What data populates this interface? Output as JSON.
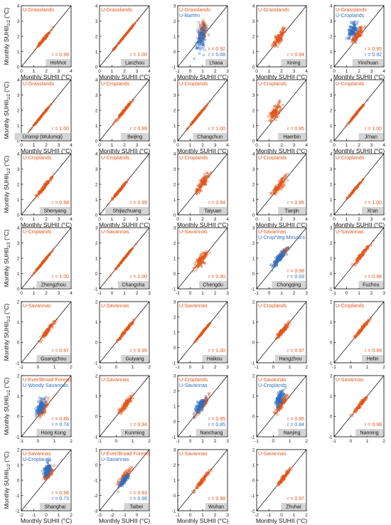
{
  "labels": {
    "ylabel_main": "Monthly SUHII",
    "ylabel_sub": "1/2",
    "ylabel_unit": "(°C)",
    "xlabel": "Monthly SUHII (°C)"
  },
  "colors": {
    "orange": "#E2561B",
    "blue": "#2F6EBF",
    "gray_box": "#D4D4D4",
    "axis": "#000000"
  },
  "chart_data": [
    {
      "city": "Hohhot",
      "type": "scatter",
      "ticks": [
        "0",
        "1",
        "2",
        "3",
        "4"
      ],
      "lo": 0,
      "hi": 4,
      "series": [
        {
          "name": "U-Grasslands",
          "color": "orange",
          "r": "r = 0.99",
          "center": [
            1.8,
            1.8
          ],
          "spread": 0.9,
          "scatter": 0.08
        }
      ]
    },
    {
      "city": "Lanzhou",
      "type": "scatter",
      "ticks": [
        "0",
        "1",
        "2",
        "3",
        "4"
      ],
      "lo": 0,
      "hi": 4,
      "series": [
        {
          "name": "U-Grasslands",
          "color": "orange",
          "r": "r = 1.00",
          "center": [
            2.0,
            2.0
          ],
          "spread": 1.4,
          "scatter": 0.03
        }
      ]
    },
    {
      "city": "Lhasa",
      "type": "scatter",
      "ticks": [
        "-1",
        "0",
        "1",
        "2",
        "3"
      ],
      "lo": -1,
      "hi": 3,
      "series": [
        {
          "name": "U-Grasslands",
          "color": "orange",
          "r": "r = 0.92",
          "center": [
            1.0,
            1.4
          ],
          "spread": 0.4,
          "scatter": 0.45
        },
        {
          "name": "U-Barren",
          "color": "blue",
          "r": "r = 0.68",
          "center": [
            0.9,
            0.9
          ],
          "spread": 0.5,
          "scatter": 0.6
        }
      ]
    },
    {
      "city": "Xining",
      "type": "scatter",
      "ticks": [
        "0",
        "1",
        "2",
        "3",
        "4"
      ],
      "lo": 0,
      "hi": 4,
      "series": [
        {
          "name": "U-Grasslands",
          "color": "orange",
          "r": "r = 0.94",
          "center": [
            1.8,
            1.9
          ],
          "spread": 0.8,
          "scatter": 0.3
        }
      ]
    },
    {
      "city": "Yinchuan",
      "type": "scatter",
      "ticks": [
        "0",
        "1",
        "2",
        "3",
        "4"
      ],
      "lo": 0,
      "hi": 4,
      "series": [
        {
          "name": "U-Grasslands",
          "color": "orange",
          "r": "r = 0.95",
          "center": [
            1.9,
            2.1
          ],
          "spread": 0.7,
          "scatter": 0.3
        },
        {
          "name": "U-Croplands",
          "color": "blue",
          "r": "r = 0.92",
          "center": [
            1.5,
            2.4
          ],
          "spread": 0.5,
          "scatter": 0.35
        }
      ]
    },
    {
      "city": "Ürümqi (Wulumqi)",
      "type": "scatter",
      "ticks": [
        "0",
        "1",
        "2",
        "3",
        "4"
      ],
      "lo": 0,
      "hi": 4,
      "series": [
        {
          "name": "U-Grasslands",
          "color": "orange",
          "r": "r = 1.00",
          "center": [
            1.6,
            1.6
          ],
          "spread": 1.1,
          "scatter": 0.04
        }
      ]
    },
    {
      "city": "Beijing",
      "type": "scatter",
      "ticks": [
        "0",
        "1",
        "2",
        "3",
        "4"
      ],
      "lo": 0,
      "hi": 4,
      "series": [
        {
          "name": "U-Croplands",
          "color": "orange",
          "r": "r = 0.99",
          "center": [
            2.0,
            2.0
          ],
          "spread": 1.0,
          "scatter": 0.08
        }
      ]
    },
    {
      "city": "Changchun",
      "type": "scatter",
      "ticks": [
        "0",
        "1",
        "2",
        "3",
        "4"
      ],
      "lo": 0,
      "hi": 4,
      "series": [
        {
          "name": "U-Croplands",
          "color": "orange",
          "r": "r = 1.00",
          "center": [
            1.6,
            1.6
          ],
          "spread": 1.1,
          "scatter": 0.04
        }
      ]
    },
    {
      "city": "Haerbin",
      "type": "scatter",
      "ticks": [
        "0",
        "1",
        "2",
        "3",
        "4"
      ],
      "lo": 0,
      "hi": 4,
      "series": [
        {
          "name": "U-Croplands",
          "color": "orange",
          "r": "r = 0.95",
          "center": [
            1.5,
            1.9
          ],
          "spread": 0.7,
          "scatter": 0.35
        }
      ]
    },
    {
      "city": "Ji'nan",
      "type": "scatter",
      "ticks": [
        "0",
        "1",
        "2",
        "3",
        "4"
      ],
      "lo": 0,
      "hi": 4,
      "series": [
        {
          "name": "U-Croplands",
          "color": "orange",
          "r": "r = 1.00",
          "center": [
            1.8,
            1.8
          ],
          "spread": 1.0,
          "scatter": 0.04
        }
      ]
    },
    {
      "city": "Shenyang",
      "type": "scatter",
      "ticks": [
        "0",
        "1",
        "2",
        "3",
        "4"
      ],
      "lo": 0,
      "hi": 4,
      "series": [
        {
          "name": "U-Croplands",
          "color": "orange",
          "r": "r = 0.98",
          "center": [
            1.8,
            1.8
          ],
          "spread": 1.0,
          "scatter": 0.12
        }
      ]
    },
    {
      "city": "Shijiazhuang",
      "type": "scatter",
      "ticks": [
        "0",
        "1",
        "2",
        "3",
        "4"
      ],
      "lo": 0,
      "hi": 4,
      "series": [
        {
          "name": "U-Croplands",
          "color": "orange",
          "r": "r = 0.99",
          "center": [
            1.6,
            1.6
          ],
          "spread": 1.0,
          "scatter": 0.07
        }
      ]
    },
    {
      "city": "Taiyuan",
      "type": "scatter",
      "ticks": [
        "0",
        "1",
        "2",
        "3",
        "4"
      ],
      "lo": 0,
      "hi": 4,
      "series": [
        {
          "name": "U-Croplands",
          "color": "orange",
          "r": "r = 0.94",
          "center": [
            2.0,
            2.1
          ],
          "spread": 0.8,
          "scatter": 0.28
        }
      ]
    },
    {
      "city": "Tianjin",
      "type": "scatter",
      "ticks": [
        "0",
        "1",
        "2",
        "3",
        "4"
      ],
      "lo": 0,
      "hi": 4,
      "series": [
        {
          "name": "U-Croplands",
          "color": "orange",
          "r": "r = 0.95",
          "center": [
            1.8,
            1.9
          ],
          "spread": 0.9,
          "scatter": 0.3
        }
      ]
    },
    {
      "city": "Xi'an",
      "type": "scatter",
      "ticks": [
        "0",
        "1",
        "2",
        "3",
        "4"
      ],
      "lo": 0,
      "hi": 4,
      "series": [
        {
          "name": "U-Croplands",
          "color": "orange",
          "r": "r = 1.00",
          "center": [
            1.7,
            1.7
          ],
          "spread": 1.0,
          "scatter": 0.04
        }
      ]
    },
    {
      "city": "Zhengzhou",
      "type": "scatter",
      "ticks": [
        "0",
        "1",
        "2",
        "3",
        "4"
      ],
      "lo": 0,
      "hi": 4,
      "series": [
        {
          "name": "U-Croplands",
          "color": "orange",
          "r": "r = 1.00",
          "center": [
            1.8,
            1.8
          ],
          "spread": 1.1,
          "scatter": 0.04
        }
      ]
    },
    {
      "city": "Changsha",
      "type": "scatter",
      "ticks": [
        "-1",
        "0",
        "1",
        "2",
        "3"
      ],
      "lo": -1,
      "hi": 3,
      "series": [
        {
          "name": "U-Savannas",
          "color": "orange",
          "r": "r = 1.00",
          "center": [
            1.0,
            1.0
          ],
          "spread": 1.1,
          "scatter": 0.04
        }
      ]
    },
    {
      "city": "Chengdu",
      "type": "scatter",
      "ticks": [
        "-1",
        "0",
        "1",
        "2",
        "3"
      ],
      "lo": -1,
      "hi": 3,
      "series": [
        {
          "name": "U-Savannas",
          "color": "orange",
          "r": "r = 0.90",
          "center": [
            0.9,
            0.9
          ],
          "spread": 0.7,
          "scatter": 0.3
        }
      ]
    },
    {
      "city": "Chongqing",
      "type": "scatter",
      "ticks": [
        "-1",
        "0",
        "1",
        "2",
        "3"
      ],
      "lo": -1,
      "hi": 3,
      "series": [
        {
          "name": "U-Savannas",
          "color": "orange",
          "r": "r = 0.98",
          "center": [
            1.0,
            1.2
          ],
          "spread": 0.8,
          "scatter": 0.12
        },
        {
          "name": "U-Crop/Veg Mosaics",
          "color": "blue",
          "r": "r = 0.93",
          "center": [
            0.8,
            1.0
          ],
          "spread": 0.9,
          "scatter": 0.25
        }
      ]
    },
    {
      "city": "Fuzhou",
      "type": "scatter",
      "ticks": [
        "-1",
        "0",
        "1",
        "2",
        "3"
      ],
      "lo": -1,
      "hi": 3,
      "series": [
        {
          "name": "U-Savannas",
          "color": "orange",
          "r": "r = 0.98",
          "center": [
            1.2,
            1.2
          ],
          "spread": 0.9,
          "scatter": 0.12
        }
      ]
    },
    {
      "city": "Guangzhou",
      "type": "scatter",
      "ticks": [
        "-1",
        "0",
        "1",
        "2"
      ],
      "lo": -1,
      "hi": 2,
      "series": [
        {
          "name": "U-Savannas",
          "color": "orange",
          "r": "r = 0.97",
          "center": [
            0.6,
            0.6
          ],
          "spread": 0.7,
          "scatter": 0.1
        }
      ]
    },
    {
      "city": "Guiyang",
      "type": "scatter",
      "ticks": [
        "-1",
        "0",
        "1",
        "2"
      ],
      "lo": -1,
      "hi": 2,
      "series": [
        {
          "name": "U-Savannas",
          "color": "orange",
          "r": "r = 0.99",
          "center": [
            0.6,
            0.6
          ],
          "spread": 0.8,
          "scatter": 0.06
        }
      ]
    },
    {
      "city": "Haikou",
      "type": "scatter",
      "ticks": [
        "-1",
        "0",
        "1",
        "2",
        "3"
      ],
      "lo": -1,
      "hi": 3,
      "series": [
        {
          "name": "U-Savannas",
          "color": "orange",
          "r": "r = 1.00",
          "center": [
            1.0,
            1.0
          ],
          "spread": 0.9,
          "scatter": 0.04
        }
      ]
    },
    {
      "city": "Hangzhou",
      "type": "scatter",
      "ticks": [
        "-1",
        "0",
        "1",
        "2"
      ],
      "lo": -1,
      "hi": 2,
      "series": [
        {
          "name": "U-Croplands",
          "color": "orange",
          "r": "r = 0.97",
          "center": [
            0.6,
            0.6
          ],
          "spread": 0.6,
          "scatter": 0.1
        }
      ]
    },
    {
      "city": "Hefei",
      "type": "scatter",
      "ticks": [
        "-1",
        "0",
        "1",
        "2"
      ],
      "lo": -1,
      "hi": 2,
      "series": [
        {
          "name": "U-Croplands",
          "color": "orange",
          "r": "r = 0.99",
          "center": [
            0.7,
            0.7
          ],
          "spread": 0.7,
          "scatter": 0.06
        }
      ]
    },
    {
      "city": "Hong Kong",
      "type": "scatter",
      "ticks": [
        "-1",
        "0",
        "1",
        "2"
      ],
      "lo": -1,
      "hi": 2,
      "series": [
        {
          "name": "U-Ever/Broad Forests",
          "color": "orange",
          "r": "r = 0.86",
          "center": [
            0.3,
            0.4
          ],
          "spread": 0.4,
          "scatter": 0.25
        },
        {
          "name": "U-Woody Savannas",
          "color": "blue",
          "r": "r = 0.74",
          "center": [
            0.2,
            0.5
          ],
          "spread": 0.4,
          "scatter": 0.3
        }
      ]
    },
    {
      "city": "Kunming",
      "type": "scatter",
      "ticks": [
        "-1",
        "0",
        "1",
        "2"
      ],
      "lo": -1,
      "hi": 2,
      "series": [
        {
          "name": "U-Savannas",
          "color": "orange",
          "r": "r = 0.94",
          "center": [
            0.6,
            0.6
          ],
          "spread": 0.6,
          "scatter": 0.15
        }
      ]
    },
    {
      "city": "Nanchang",
      "type": "scatter",
      "ticks": [
        "-1",
        "0",
        "1",
        "2",
        "3"
      ],
      "lo": -1,
      "hi": 3,
      "series": [
        {
          "name": "U-Croplands",
          "color": "orange",
          "r": "r = 0.95",
          "center": [
            1.0,
            1.1
          ],
          "spread": 0.8,
          "scatter": 0.2
        },
        {
          "name": "U-Savannas",
          "color": "blue",
          "r": "r = 0.85",
          "center": [
            0.8,
            1.0
          ],
          "spread": 0.6,
          "scatter": 0.3
        }
      ]
    },
    {
      "city": "Nanjing",
      "type": "scatter",
      "ticks": [
        "-1",
        "0",
        "1",
        "2"
      ],
      "lo": -1,
      "hi": 2,
      "series": [
        {
          "name": "U-Savannas",
          "color": "orange",
          "r": "r = 0.95",
          "center": [
            0.5,
            0.6
          ],
          "spread": 0.5,
          "scatter": 0.15
        },
        {
          "name": "U-Croplands",
          "color": "blue",
          "r": "r = 0.84",
          "center": [
            0.4,
            0.9
          ],
          "spread": 0.4,
          "scatter": 0.25
        }
      ]
    },
    {
      "city": "Nanning",
      "type": "scatter",
      "ticks": [
        "-1",
        "0",
        "1",
        "2"
      ],
      "lo": -1,
      "hi": 2,
      "series": [
        {
          "name": "U-Savannas",
          "color": "orange",
          "r": "r = 0.98",
          "center": [
            0.6,
            0.6
          ],
          "spread": 0.6,
          "scatter": 0.08
        }
      ]
    },
    {
      "city": "Shanghai",
      "type": "scatter",
      "ticks": [
        "-2",
        "-1",
        "0",
        "1",
        "2"
      ],
      "lo": -2,
      "hi": 2,
      "series": [
        {
          "name": "U-Savannas",
          "color": "orange",
          "r": "r = 0.96",
          "center": [
            0.2,
            0.4
          ],
          "spread": 0.5,
          "scatter": 0.2
        },
        {
          "name": "U-Croplands",
          "color": "blue",
          "r": "r = 0.73",
          "center": [
            0.1,
            0.7
          ],
          "spread": 0.4,
          "scatter": 0.35
        }
      ]
    },
    {
      "city": "Taibei",
      "type": "scatter",
      "ticks": [
        "-3",
        "-2",
        "-1",
        "0",
        "1"
      ],
      "lo": -3,
      "hi": 1,
      "series": [
        {
          "name": "U-Ever/Broad Forests",
          "color": "orange",
          "r": "r = 0.93",
          "center": [
            -1.0,
            -0.8
          ],
          "spread": 0.7,
          "scatter": 0.25
        },
        {
          "name": "U-Savannas",
          "color": "blue",
          "r": "r = 0.98",
          "center": [
            -1.0,
            -1.0
          ],
          "spread": 0.6,
          "scatter": 0.15
        }
      ]
    },
    {
      "city": "Wuhan",
      "type": "scatter",
      "ticks": [
        "-1",
        "0",
        "1",
        "2",
        "3"
      ],
      "lo": -1,
      "hi": 3,
      "series": [
        {
          "name": "U-Savannas",
          "color": "orange",
          "r": "r = 0.98",
          "center": [
            1.0,
            1.0
          ],
          "spread": 0.9,
          "scatter": 0.12
        }
      ]
    },
    {
      "city": "Zhuhai",
      "type": "scatter",
      "ticks": [
        "-2",
        "-1",
        "0",
        "1",
        "2"
      ],
      "lo": -2,
      "hi": 2,
      "series": [
        {
          "name": "U-Savannas",
          "color": "orange",
          "r": "r = 0.97",
          "center": [
            0.2,
            0.2
          ],
          "spread": 0.8,
          "scatter": 0.12
        }
      ]
    }
  ]
}
